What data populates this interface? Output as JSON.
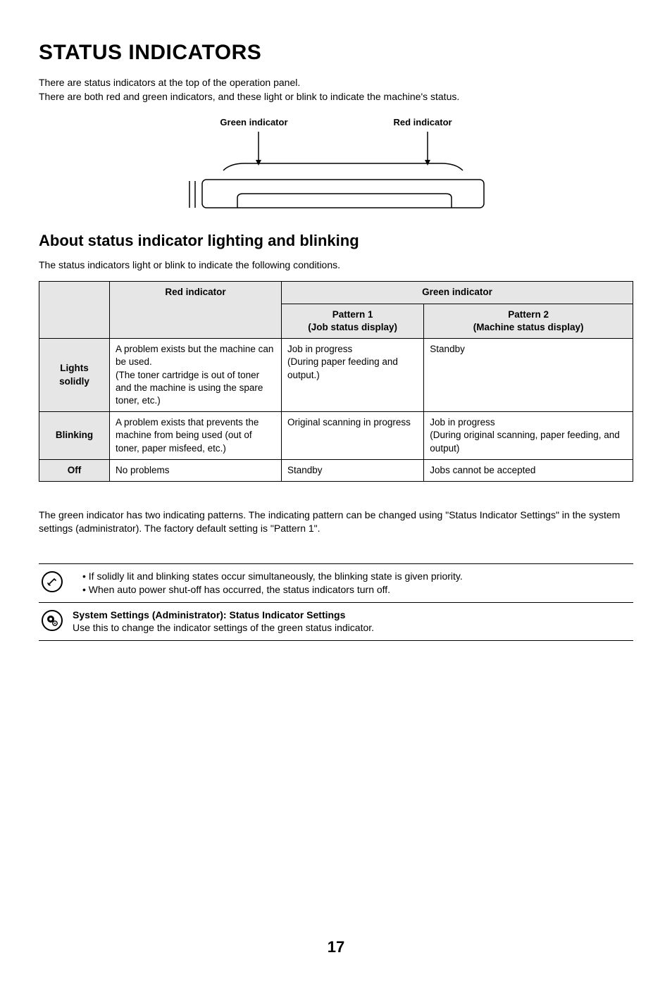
{
  "page": {
    "title": "STATUS INDICATORS",
    "intro_line1": "There are status indicators at the top of the operation panel.",
    "intro_line2": "There are both red and green indicators, and these light or blink to indicate the machine's status.",
    "page_number": "17"
  },
  "diagram": {
    "green_label": "Green indicator",
    "red_label": "Red indicator"
  },
  "section": {
    "heading": "About status indicator lighting and blinking",
    "intro": "The status indicators light or blink to indicate the following conditions."
  },
  "table": {
    "col_red": "Red indicator",
    "col_green": "Green indicator",
    "col_pattern1_l1": "Pattern 1",
    "col_pattern1_l2": "(Job status display)",
    "col_pattern2_l1": "Pattern 2",
    "col_pattern2_l2": "(Machine status display)",
    "rows": [
      {
        "state": "Lights solidly",
        "red": "A problem exists but the machine can be used.\n(The toner cartridge is out of toner and the machine is using the spare toner, etc.)",
        "p1": "Job in progress\n(During paper feeding and output.)",
        "p2": "Standby"
      },
      {
        "state": "Blinking",
        "red": "A problem exists that prevents the machine from being used (out of toner, paper misfeed, etc.)",
        "p1": "Original scanning in progress",
        "p2": "Job in progress\n(During original scanning, paper feeding, and output)"
      },
      {
        "state": "Off",
        "red": "No problems",
        "p1": "Standby",
        "p2": "Jobs cannot be accepted"
      }
    ]
  },
  "footnote": "The green indicator has two indicating patterns. The indicating pattern can be changed using \"Status Indicator Settings\" in the system settings (administrator). The factory default setting is \"Pattern 1\".",
  "info1": {
    "bullet1": "If solidly lit and blinking states occur simultaneously, the blinking state is given priority.",
    "bullet2": "When auto power shut-off has occurred, the status indicators turn off."
  },
  "info2": {
    "title": "System Settings (Administrator): Status Indicator Settings",
    "body": "Use this to change the indicator settings of the green status indicator."
  },
  "colors": {
    "border": "#000000",
    "header_bg": "#e6e6e6",
    "text": "#000000",
    "background": "#ffffff"
  }
}
